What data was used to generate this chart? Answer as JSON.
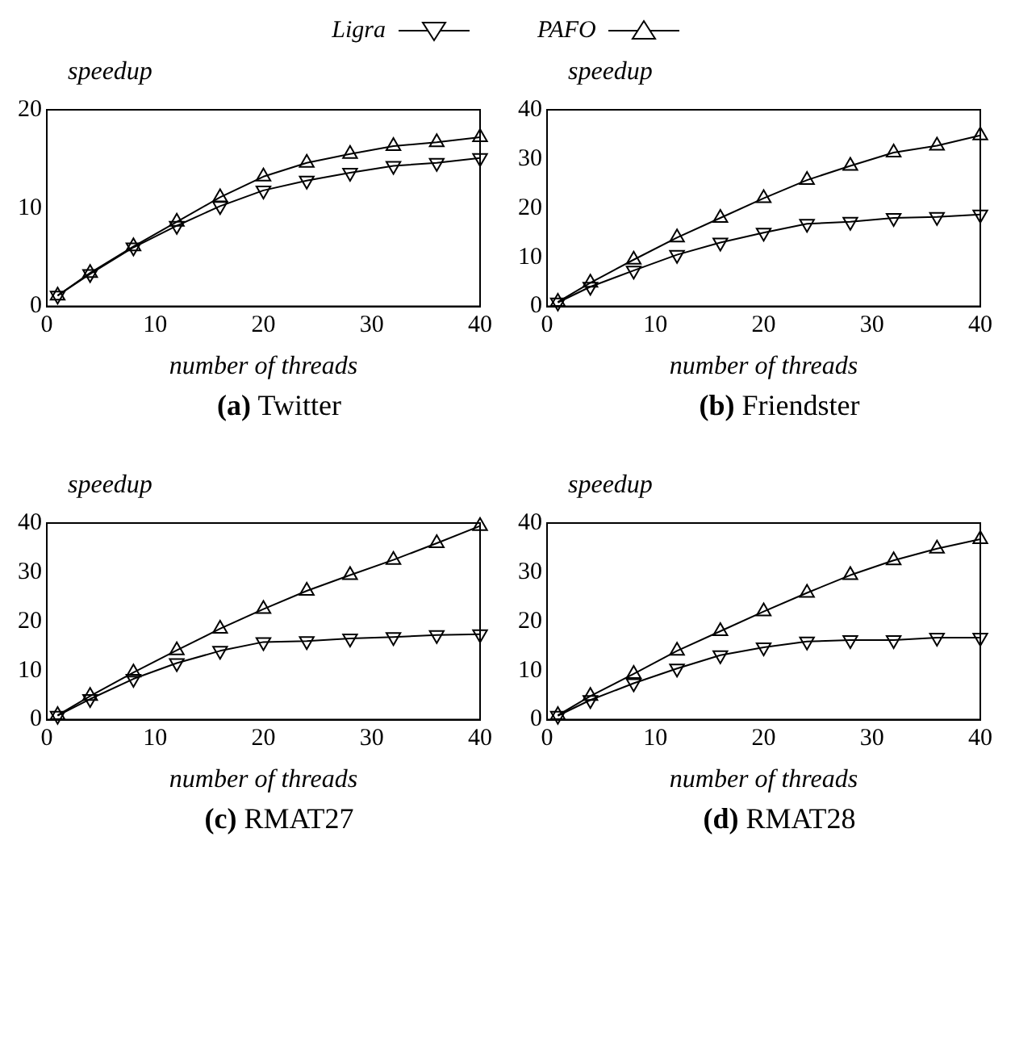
{
  "chart_data": [
    {
      "type": "line",
      "title": "(a) Twitter",
      "xlabel": "number of threads",
      "ylabel": "speedup",
      "x": [
        1,
        4,
        8,
        12,
        16,
        20,
        24,
        28,
        32,
        36,
        40
      ],
      "xlim": [
        0,
        40
      ],
      "xticks": [
        0,
        10,
        20,
        30,
        40
      ],
      "ylim": [
        0,
        20
      ],
      "yticks": [
        0,
        10,
        20
      ],
      "grid": false,
      "legend": "top",
      "series": [
        {
          "name": "Ligra",
          "color": "#000000",
          "marker": "triangle-down",
          "values": [
            1.1,
            3.3,
            6.0,
            8.2,
            10.2,
            11.8,
            12.8,
            13.6,
            14.3,
            14.6,
            15.1
          ]
        },
        {
          "name": "PAFO",
          "color": "#000000",
          "marker": "triangle",
          "values": [
            1.1,
            3.4,
            6.1,
            8.6,
            11.1,
            13.2,
            14.6,
            15.5,
            16.3,
            16.7,
            17.2
          ]
        }
      ]
    },
    {
      "type": "line",
      "title": "(b) Friendster",
      "xlabel": "number of threads",
      "ylabel": "speedup",
      "x": [
        1,
        4,
        8,
        12,
        16,
        20,
        24,
        28,
        32,
        36,
        40
      ],
      "xlim": [
        0,
        40
      ],
      "xticks": [
        0,
        10,
        20,
        30,
        40
      ],
      "ylim": [
        0,
        40
      ],
      "yticks": [
        0,
        10,
        20,
        30,
        40
      ],
      "grid": false,
      "series": [
        {
          "color": "#000000",
          "marker": "triangle-down",
          "values": [
            0.8,
            4,
            7.3,
            10.5,
            13,
            15,
            16.8,
            17.2,
            18,
            18.2,
            18.7
          ]
        },
        {
          "color": "#000000",
          "marker": "triangle",
          "values": [
            0.9,
            4.8,
            9.5,
            14,
            18,
            22,
            25.7,
            28.6,
            31.3,
            32.7,
            34.8
          ]
        }
      ]
    },
    {
      "type": "line",
      "title": "(c) RMAT27",
      "xlabel": "number of threads",
      "ylabel": "speedup",
      "x": [
        1,
        4,
        8,
        12,
        16,
        20,
        24,
        28,
        32,
        36,
        40
      ],
      "xlim": [
        0,
        40
      ],
      "xticks": [
        0,
        10,
        20,
        30,
        40
      ],
      "ylim": [
        0,
        40
      ],
      "yticks": [
        0,
        10,
        20,
        30,
        40
      ],
      "grid": false,
      "series": [
        {
          "color": "#000000",
          "marker": "triangle-down",
          "values": [
            0.8,
            4.2,
            8.3,
            11.5,
            14,
            15.8,
            16,
            16.5,
            16.8,
            17.2,
            17.4
          ]
        },
        {
          "color": "#000000",
          "marker": "triangle",
          "values": [
            0.9,
            4.8,
            9.6,
            14.1,
            18.5,
            22.5,
            26.2,
            29.4,
            32.5,
            35.9,
            39.4
          ]
        }
      ]
    },
    {
      "type": "line",
      "title": "(d) RMAT28",
      "xlabel": "number of threads",
      "ylabel": "speedup",
      "x": [
        1,
        4,
        8,
        12,
        16,
        20,
        24,
        28,
        32,
        36,
        40
      ],
      "xlim": [
        0,
        40
      ],
      "xticks": [
        0,
        10,
        20,
        30,
        40
      ],
      "ylim": [
        0,
        40
      ],
      "yticks": [
        0,
        10,
        20,
        30,
        40
      ],
      "grid": false,
      "series": [
        {
          "color": "#000000",
          "marker": "triangle-down",
          "values": [
            0.8,
            4,
            7.4,
            10.4,
            13.1,
            14.7,
            15.9,
            16.2,
            16.2,
            16.7,
            16.7
          ]
        },
        {
          "color": "#000000",
          "marker": "triangle",
          "values": [
            0.9,
            4.8,
            9.3,
            14,
            18,
            22,
            25.8,
            29.4,
            32.4,
            34.8,
            36.7
          ]
        }
      ]
    }
  ]
}
